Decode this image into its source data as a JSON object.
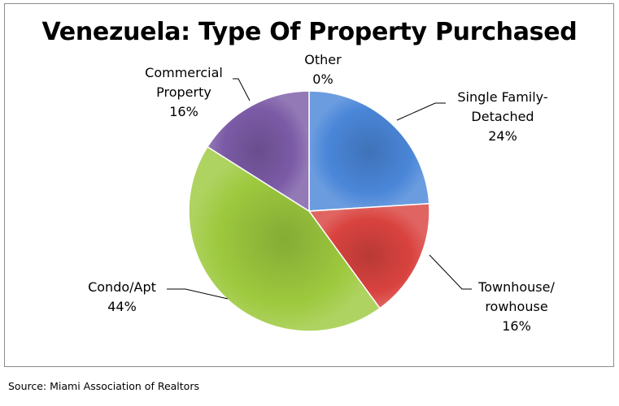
{
  "source": "Source: Miami Association of Realtors",
  "chart_data": {
    "type": "pie",
    "title": "Venezuela: Type Of Property Purchased",
    "slices": [
      {
        "label": "Single Family-Detached",
        "label_lines": [
          "Single Family-",
          "Detached"
        ],
        "value": 24,
        "value_label": "24%",
        "color": "#4a86d8"
      },
      {
        "label": "Townhouse/rowhouse",
        "label_lines": [
          "Townhouse/",
          "rowhouse"
        ],
        "value": 16,
        "value_label": "16%",
        "color": "#d9433f"
      },
      {
        "label": "Condo/Apt",
        "label_lines": [
          "Condo/Apt"
        ],
        "value": 44,
        "value_label": "44%",
        "color": "#9dc93e"
      },
      {
        "label": "Commercial Property",
        "label_lines": [
          "Commercial",
          "Property"
        ],
        "value": 16,
        "value_label": "16%",
        "color": "#7b5ba6"
      },
      {
        "label": "Other",
        "label_lines": [
          "Other"
        ],
        "value": 0,
        "value_label": "0%",
        "color": "#31a9c9"
      }
    ]
  }
}
